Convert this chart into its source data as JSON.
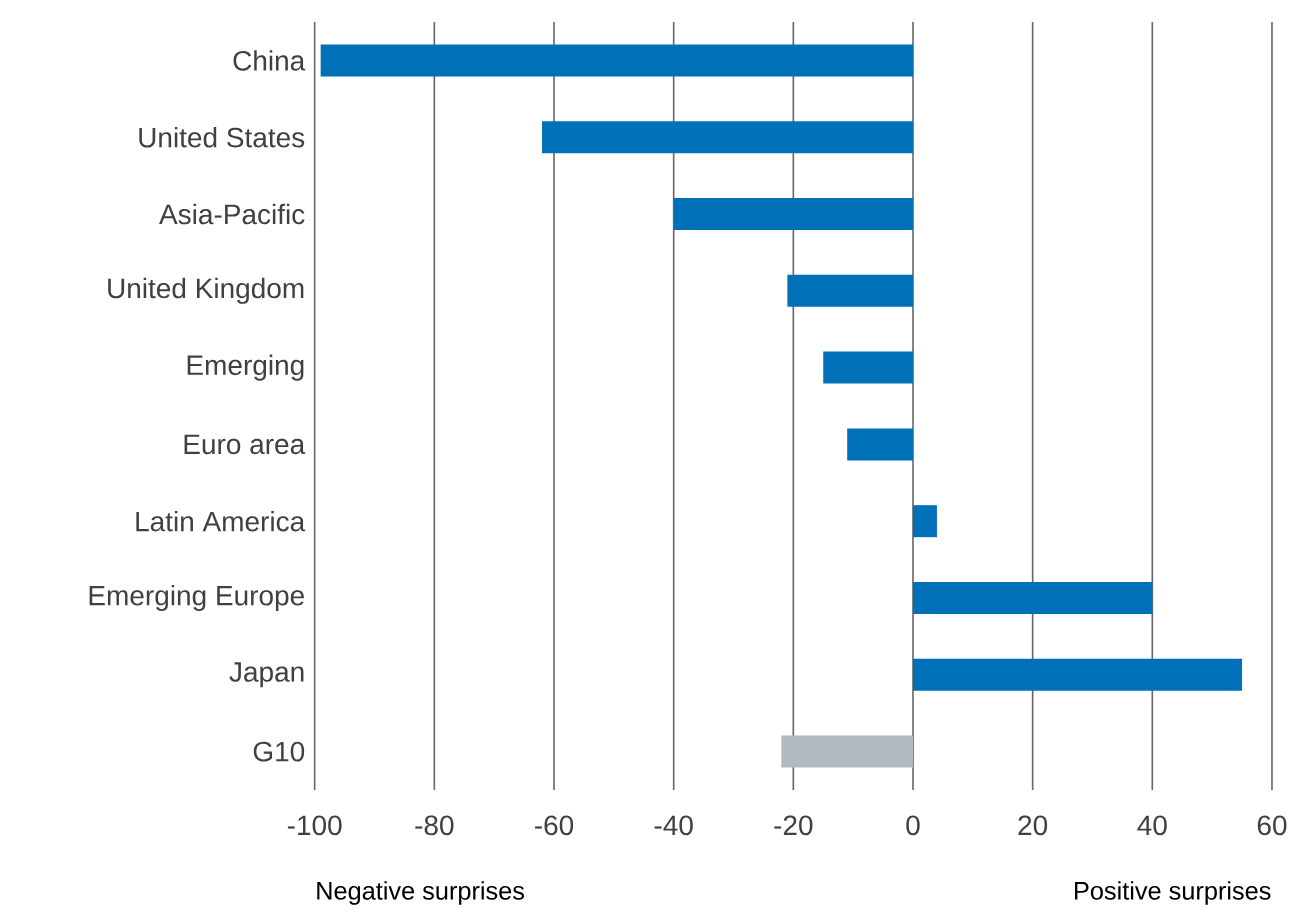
{
  "chart_data": {
    "type": "bar",
    "orientation": "horizontal",
    "categories": [
      "China",
      "United States",
      "Asia-Pacific",
      "United Kingdom",
      "Emerging",
      "Euro area",
      "Latin America",
      "Emerging Europe",
      "Japan",
      "G10"
    ],
    "values": [
      -99,
      -62,
      -40,
      -21,
      -15,
      -11,
      4,
      40,
      55,
      -22
    ],
    "colors": [
      "#0070b8",
      "#0070b8",
      "#0070b8",
      "#0070b8",
      "#0070b8",
      "#0070b8",
      "#0070b8",
      "#0070b8",
      "#0070b8",
      "#b2bcc0"
    ],
    "xlim": [
      -100,
      60
    ],
    "xticks": [
      -100,
      -80,
      -60,
      -40,
      -20,
      0,
      20,
      40,
      60
    ],
    "grid": "x",
    "annotations": [
      "Negative surprises",
      "Positive surprises"
    ]
  }
}
